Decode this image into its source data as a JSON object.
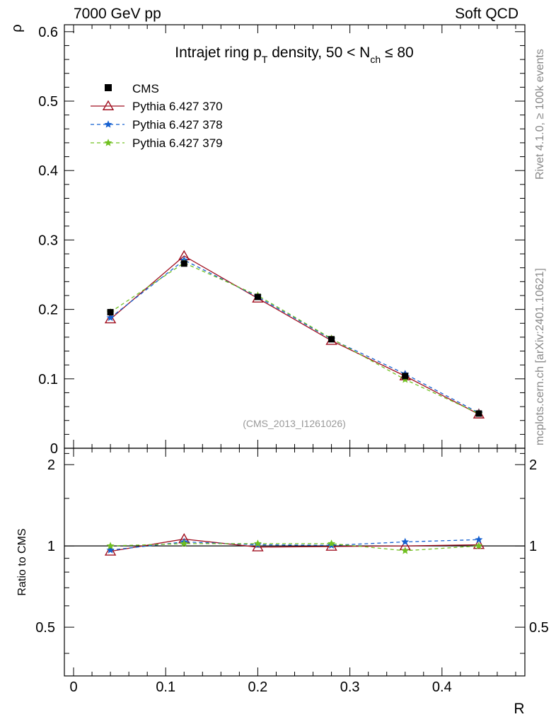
{
  "header": {
    "energy_label": "7000 GeV pp",
    "category_label": "Soft QCD"
  },
  "side_labels": {
    "rivet": "Rivet 4.1.0, ≥ 100k events",
    "mcplots": "mcplots.cern.ch [arXiv:2401.10621]"
  },
  "colors": {
    "cms": "#000000",
    "p370": "#a01020",
    "p378": "#1560d0",
    "p379": "#70c020",
    "watermark": "#999999"
  },
  "chart_data": {
    "type": "line",
    "title": "Intrajet ring p_T density, 50 < N_ch ≤ 80",
    "title_parts": {
      "main": "Intrajet ring p",
      "sub1": "T",
      "mid": " density, 50 < N",
      "sub2": "ch",
      "end": " ≤ 80"
    },
    "analysis_id": "(CMS_2013_I1261026)",
    "xlabel": "R",
    "ylabel": "ρ",
    "ratio_ylabel": "Ratio to CMS",
    "xlim": [
      -0.01,
      0.49
    ],
    "ylim": [
      0,
      0.61
    ],
    "ratio_ylim": [
      0.33,
      2.3
    ],
    "x_ticks": [
      "0",
      "0.1",
      "0.2",
      "0.3",
      "0.4"
    ],
    "x_tick_values": [
      0,
      0.1,
      0.2,
      0.3,
      0.4
    ],
    "y_ticks": [
      "0",
      "0.1",
      "0.2",
      "0.3",
      "0.4",
      "0.5",
      "0.6"
    ],
    "y_tick_values": [
      0,
      0.1,
      0.2,
      0.3,
      0.4,
      0.5,
      0.6
    ],
    "ratio_ticks": [
      "0.5",
      "1",
      "2"
    ],
    "ratio_tick_values": [
      0.5,
      1,
      2
    ],
    "x": [
      0.04,
      0.12,
      0.2,
      0.28,
      0.36,
      0.44
    ],
    "data": {
      "name": "CMS",
      "values": [
        0.196,
        0.266,
        0.218,
        0.157,
        0.104,
        0.05
      ]
    },
    "series": [
      {
        "name": "Pythia 6.427 370",
        "key": "p370",
        "marker": "triangle",
        "dashed": false,
        "values": [
          0.186,
          0.277,
          0.216,
          0.155,
          0.104,
          0.049
        ],
        "ratio": [
          0.955,
          1.06,
          0.99,
          0.995,
          1.0,
          1.01
        ]
      },
      {
        "name": "Pythia 6.427 378",
        "key": "p378",
        "marker": "star",
        "dashed": true,
        "values": [
          0.188,
          0.271,
          0.218,
          0.157,
          0.107,
          0.051
        ],
        "ratio": [
          0.965,
          1.035,
          1.01,
          1.005,
          1.035,
          1.055
        ]
      },
      {
        "name": "Pythia 6.427 379",
        "key": "p379",
        "marker": "star",
        "dashed": true,
        "values": [
          0.196,
          0.267,
          0.22,
          0.158,
          0.099,
          0.05
        ],
        "ratio": [
          1.0,
          1.02,
          1.02,
          1.02,
          0.96,
          1.0
        ]
      }
    ]
  }
}
